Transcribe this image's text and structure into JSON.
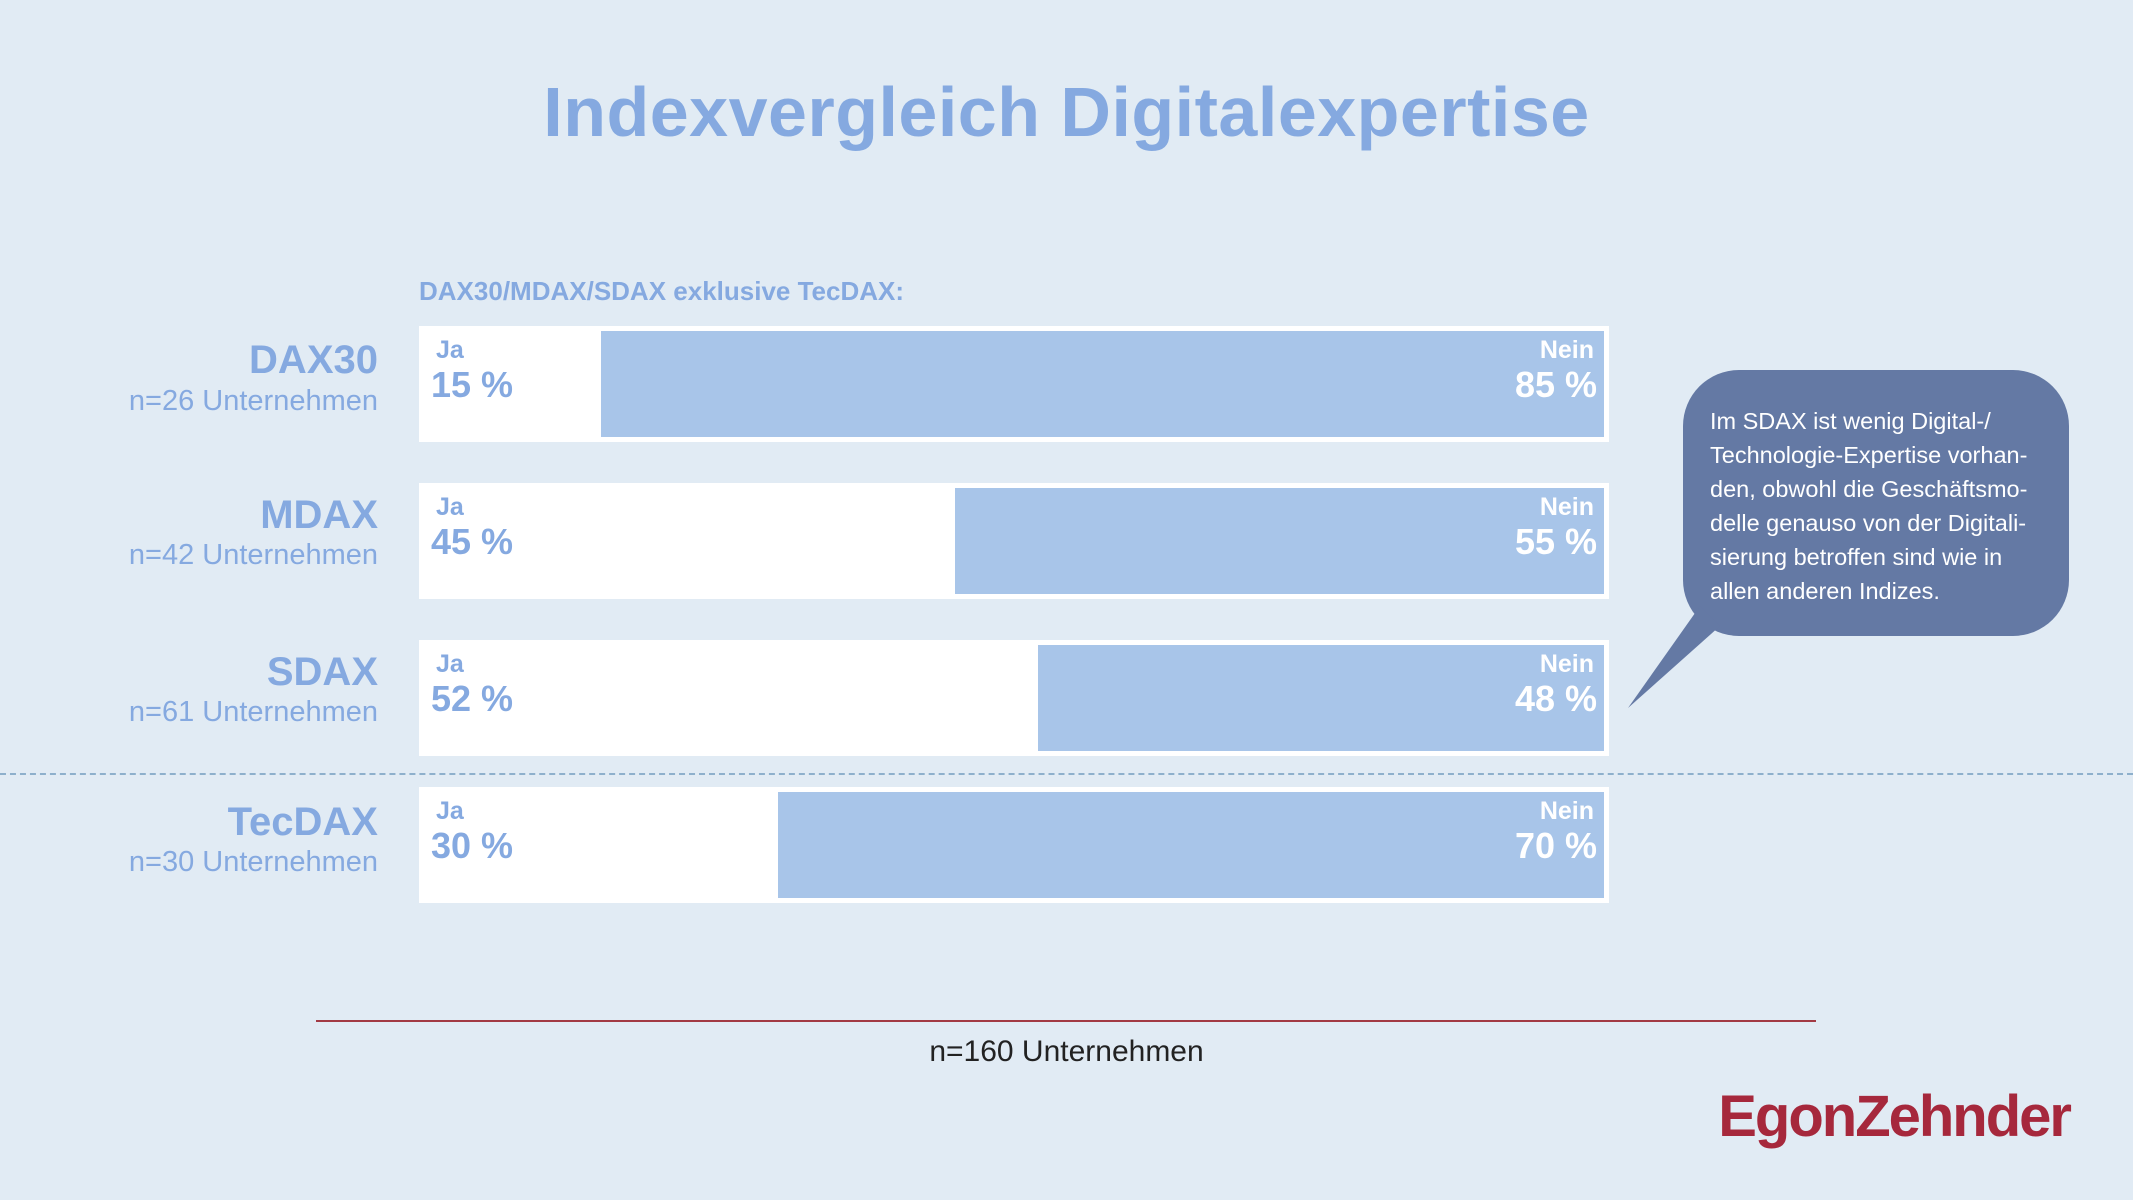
{
  "title": "Indexvergleich Digitalexpertise",
  "subtitle": "DAX30/MDAX/SDAX exklusive TecDAX:",
  "ja_label": "Ja",
  "nein_label": "Nein",
  "rows": [
    {
      "name": "DAX30",
      "n": "n=26 Unternehmen",
      "ja": "15 %",
      "nein": "85 %"
    },
    {
      "name": "MDAX",
      "n": "n=42 Unternehmen",
      "ja": "45 %",
      "nein": "55 %"
    },
    {
      "name": "SDAX",
      "n": "n=61 Unternehmen",
      "ja": "52 %",
      "nein": "48 %"
    },
    {
      "name": "TecDAX",
      "n": "n=30 Unternehmen",
      "ja": "30 %",
      "nein": "70 %"
    }
  ],
  "footer": "n=160 Unternehmen",
  "callout": "Im SDAX ist wenig Digital-/\nTechnologie-Expertise vorhan-\nden, obwohl die Geschäftsmo-\ndelle genauso von der Digitali-\nsierung betroffen sind wie in\nallen anderen Indizes.",
  "logo": "EgonZehnder",
  "colors": {
    "background": "#e1ebf4",
    "ja": "#ffffff",
    "nein": "#a8c5e9",
    "text": "#85a9e0",
    "callout": "#6479a4",
    "brand": "#a6283c"
  },
  "chart_data": {
    "type": "bar",
    "orientation": "horizontal-stacked",
    "title": "Indexvergleich Digitalexpertise",
    "subtitle": "DAX30/MDAX/SDAX exklusive TecDAX:",
    "categories": [
      "DAX30",
      "MDAX",
      "SDAX",
      "TecDAX"
    ],
    "sample_sizes": [
      "n=26 Unternehmen",
      "n=42 Unternehmen",
      "n=61 Unternehmen",
      "n=30 Unternehmen"
    ],
    "series": [
      {
        "name": "Ja",
        "values": [
          15,
          45,
          52,
          30
        ]
      },
      {
        "name": "Nein",
        "values": [
          85,
          55,
          48,
          70
        ]
      }
    ],
    "xlim": [
      0,
      100
    ],
    "unit": "%",
    "grid": false
  }
}
